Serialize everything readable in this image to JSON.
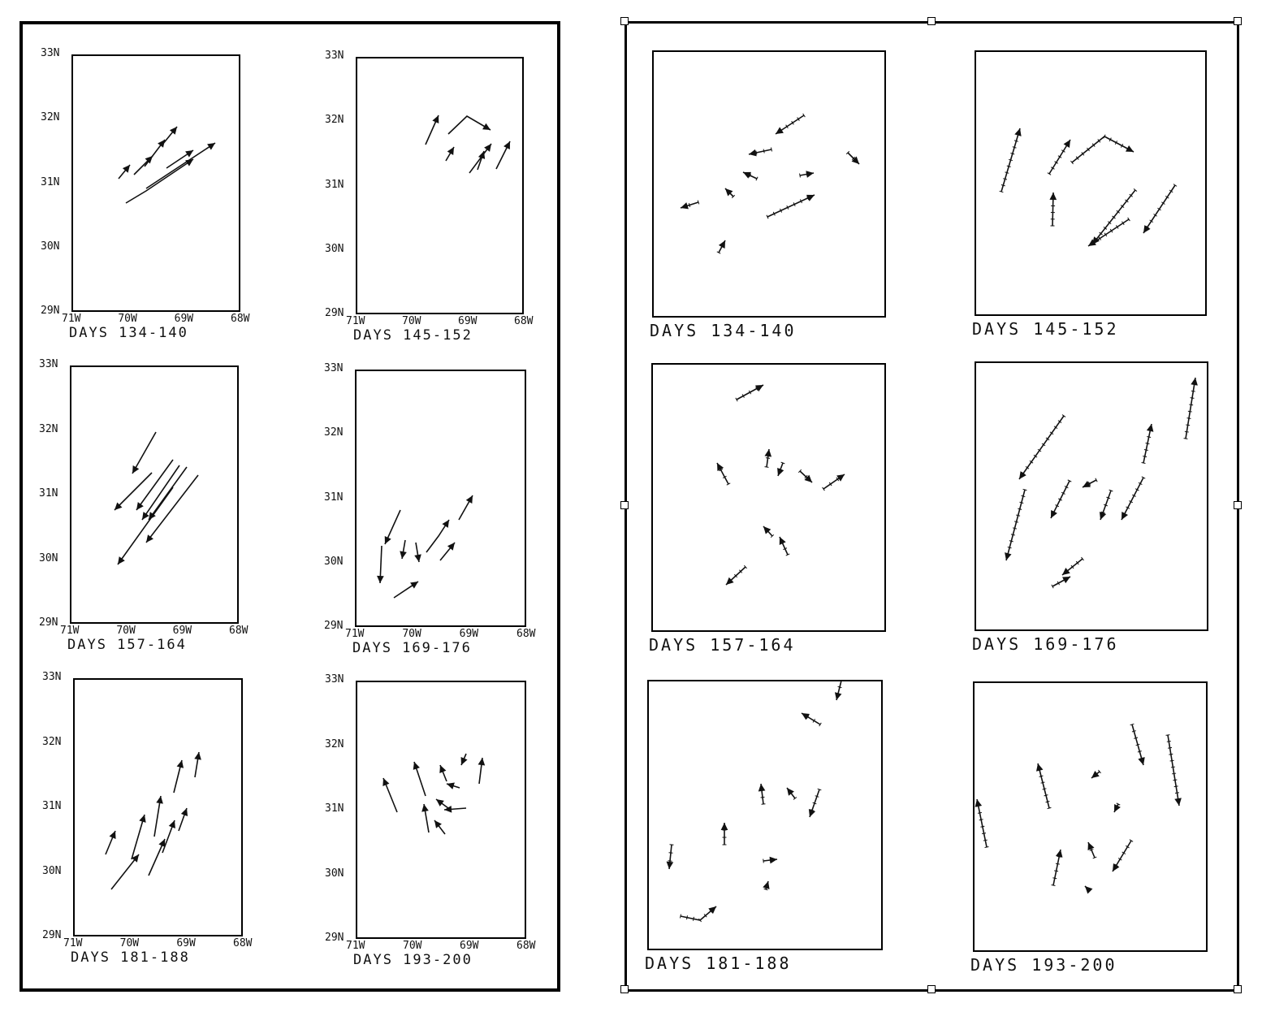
{
  "left_figure": {
    "axis_ticks": {
      "lat": [
        "33N",
        "32N",
        "31N",
        "30N",
        "29N"
      ],
      "lon": [
        "71W",
        "70W",
        "69W",
        "68W"
      ]
    },
    "panels": [
      {
        "caption": "DAYS 134-140"
      },
      {
        "caption": "DAYS 145-152"
      },
      {
        "caption": "DAYS 157-164"
      },
      {
        "caption": "DAYS 169-176"
      },
      {
        "caption": "DAYS 181-188"
      },
      {
        "caption": "DAYS 193-200"
      }
    ]
  },
  "right_figure": {
    "panels": [
      {
        "caption": "DAYS 134-140"
      },
      {
        "caption": "DAYS 145-152"
      },
      {
        "caption": "DAYS 157-164"
      },
      {
        "caption": "DAYS 169-176"
      },
      {
        "caption": "DAYS 181-188"
      },
      {
        "caption": "DAYS 193-200"
      }
    ],
    "selected": true
  },
  "colors": {
    "ink": "#111111",
    "frame": "#000000",
    "background": "#ffffff"
  },
  "icons": [
    "selection-handle-icon",
    "trajectory-arrow-icon"
  ]
}
